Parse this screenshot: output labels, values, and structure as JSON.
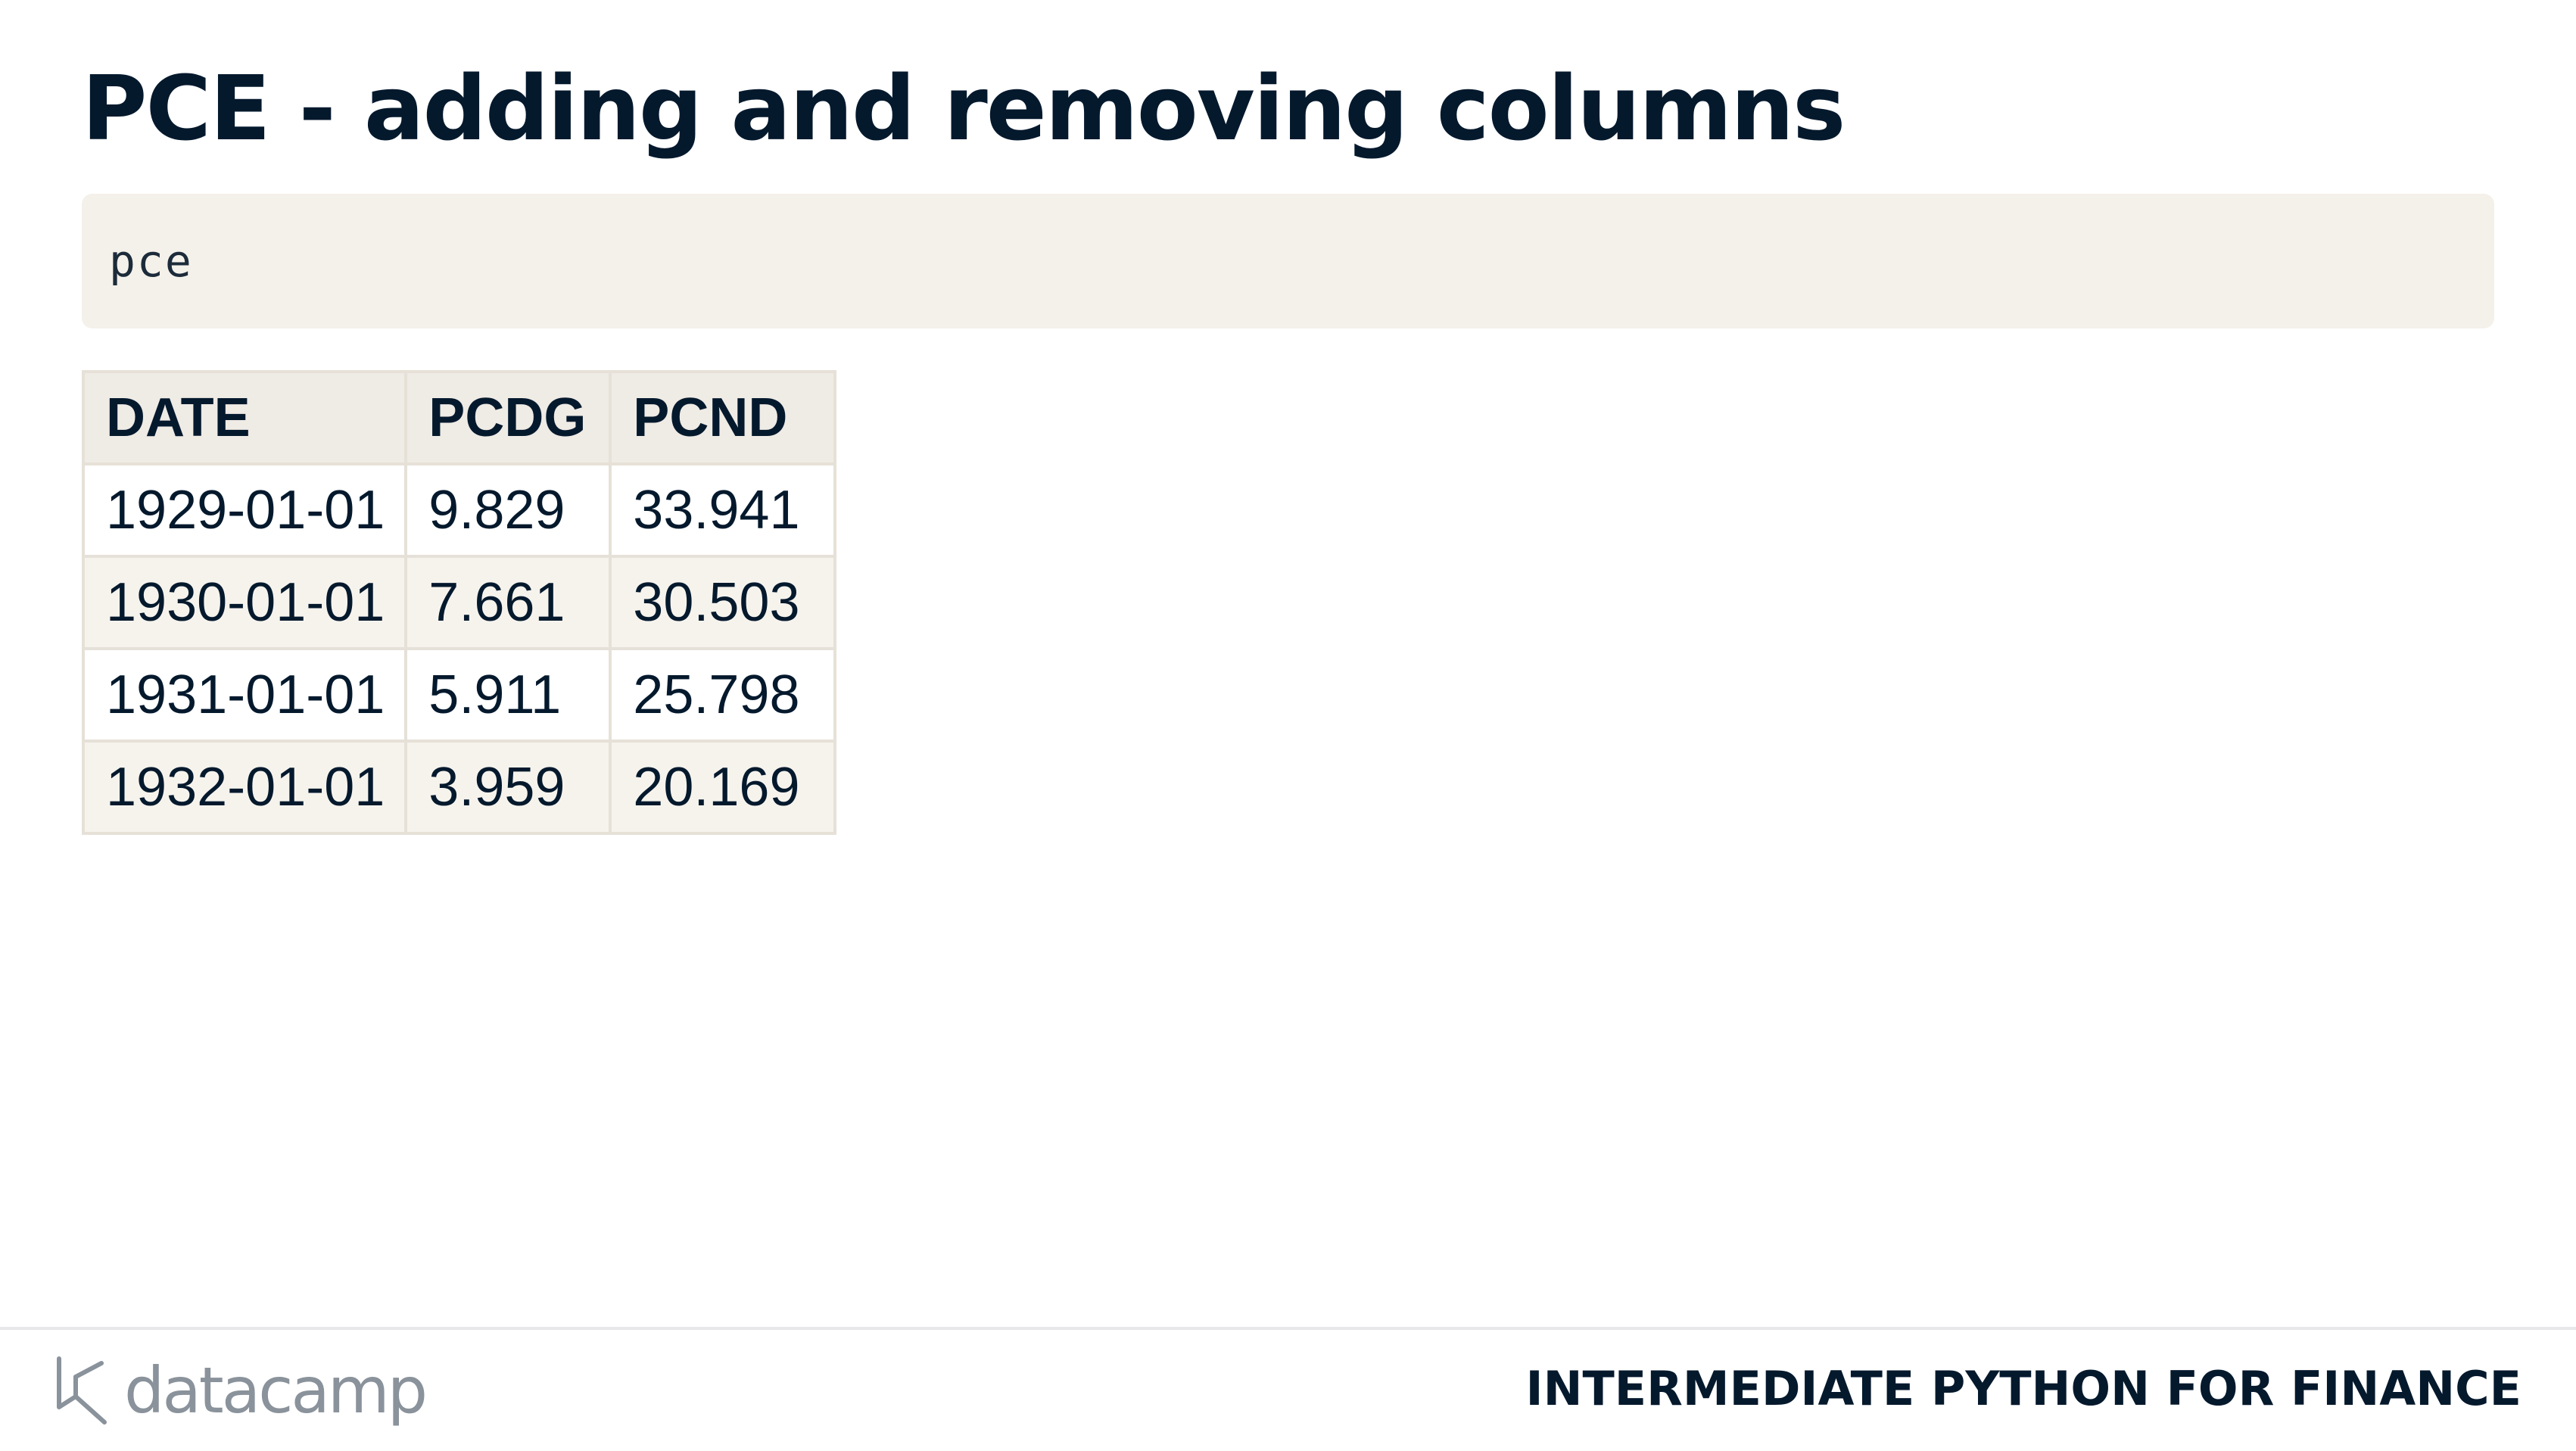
{
  "slide": {
    "title": "PCE - adding and removing columns"
  },
  "code": {
    "text": "pce"
  },
  "table": {
    "headers": [
      "DATE",
      "PCDG",
      "PCND"
    ],
    "rows": [
      [
        "1929-01-01",
        "9.829",
        "33.941"
      ],
      [
        "1930-01-01",
        "7.661",
        "30.503"
      ],
      [
        "1931-01-01",
        "5.911",
        "25.798"
      ],
      [
        "1932-01-01",
        "3.959",
        "20.169"
      ]
    ]
  },
  "footer": {
    "logo_text": "datacamp",
    "logo_icon": "datacamp-logo-icon",
    "course_name": "INTERMEDIATE PYTHON FOR FINANCE"
  },
  "colors": {
    "text": "#05192d",
    "code_bg": "#f4f1ea",
    "table_header_bg": "#efebe5",
    "table_alt_row_bg": "#f6f3ed",
    "table_border": "#e6e1d8",
    "logo_gray": "#8a929b"
  }
}
